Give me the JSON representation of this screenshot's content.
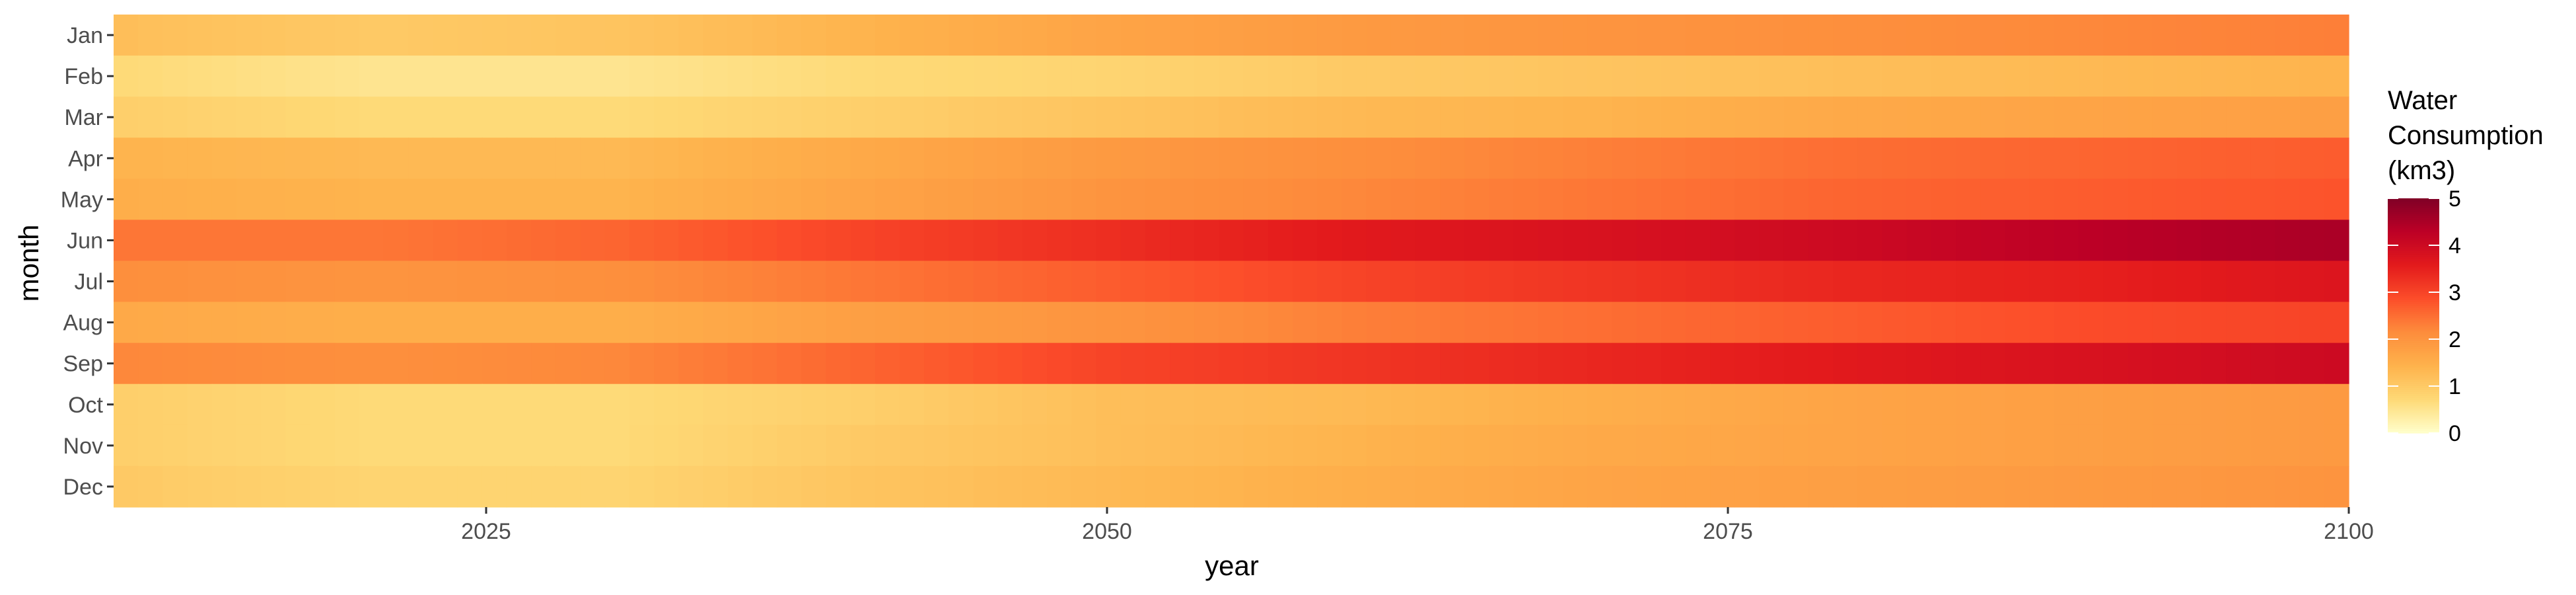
{
  "chart_data": {
    "type": "heatmap",
    "xlabel": "year",
    "ylabel": "month",
    "x_ticks": [
      "2025",
      "2050",
      "2075",
      "2100"
    ],
    "x_tick_values": [
      2025,
      2050,
      2075,
      2100
    ],
    "xlim": [
      2010,
      2100
    ],
    "months": [
      "Jan",
      "Feb",
      "Mar",
      "Apr",
      "May",
      "Jun",
      "Jul",
      "Aug",
      "Sep",
      "Oct",
      "Nov",
      "Dec"
    ],
    "years_sampled": [
      2010,
      2020,
      2030,
      2040,
      2050,
      2060,
      2070,
      2080,
      2090,
      2100
    ],
    "series": [
      {
        "name": "Jan",
        "values": [
          1.2,
          1.0,
          1.1,
          1.4,
          1.7,
          1.9,
          2.0,
          2.1,
          2.2,
          2.3
        ]
      },
      {
        "name": "Feb",
        "values": [
          0.7,
          0.5,
          0.5,
          0.7,
          0.8,
          1.0,
          1.1,
          1.2,
          1.3,
          1.4
        ]
      },
      {
        "name": "Mar",
        "values": [
          0.9,
          0.7,
          0.7,
          0.9,
          1.1,
          1.3,
          1.4,
          1.6,
          1.7,
          1.8
        ]
      },
      {
        "name": "Apr",
        "values": [
          1.4,
          1.3,
          1.3,
          1.6,
          1.9,
          2.1,
          2.3,
          2.5,
          2.6,
          2.7
        ]
      },
      {
        "name": "May",
        "values": [
          1.5,
          1.4,
          1.4,
          1.7,
          2.0,
          2.2,
          2.4,
          2.6,
          2.7,
          2.8
        ]
      },
      {
        "name": "Jun",
        "values": [
          2.4,
          2.4,
          2.6,
          3.0,
          3.3,
          3.6,
          3.8,
          4.0,
          4.3,
          4.5
        ]
      },
      {
        "name": "Jul",
        "values": [
          2.1,
          2.0,
          2.1,
          2.4,
          2.7,
          3.0,
          3.2,
          3.4,
          3.5,
          3.7
        ]
      },
      {
        "name": "Aug",
        "values": [
          1.6,
          1.5,
          1.5,
          1.8,
          2.0,
          2.3,
          2.5,
          2.7,
          2.9,
          3.0
        ]
      },
      {
        "name": "Sep",
        "values": [
          2.2,
          2.1,
          2.2,
          2.6,
          3.0,
          3.2,
          3.4,
          3.6,
          3.8,
          4.0
        ]
      },
      {
        "name": "Oct",
        "values": [
          0.9,
          0.7,
          0.7,
          0.9,
          1.2,
          1.3,
          1.5,
          1.7,
          1.8,
          1.9
        ]
      },
      {
        "name": "Nov",
        "values": [
          0.9,
          0.7,
          0.7,
          1.0,
          1.2,
          1.4,
          1.6,
          1.7,
          1.8,
          1.9
        ]
      },
      {
        "name": "Dec",
        "values": [
          1.0,
          0.8,
          0.8,
          1.1,
          1.3,
          1.5,
          1.7,
          1.8,
          1.9,
          2.0
        ]
      }
    ],
    "legend": {
      "title_lines": [
        "Water",
        "Consumption",
        "(km3)"
      ],
      "breaks": [
        0,
        1,
        2,
        3,
        4,
        5
      ],
      "break_labels": [
        "0",
        "1",
        "2",
        "3",
        "4",
        "5"
      ],
      "range": [
        0,
        5
      ],
      "placement": "right"
    },
    "color_scale": [
      "#ffffcc",
      "#fed976",
      "#feb24c",
      "#fd8d3c",
      "#fc4e2a",
      "#e31a1c",
      "#bd0026",
      "#800026"
    ],
    "grid": false
  }
}
